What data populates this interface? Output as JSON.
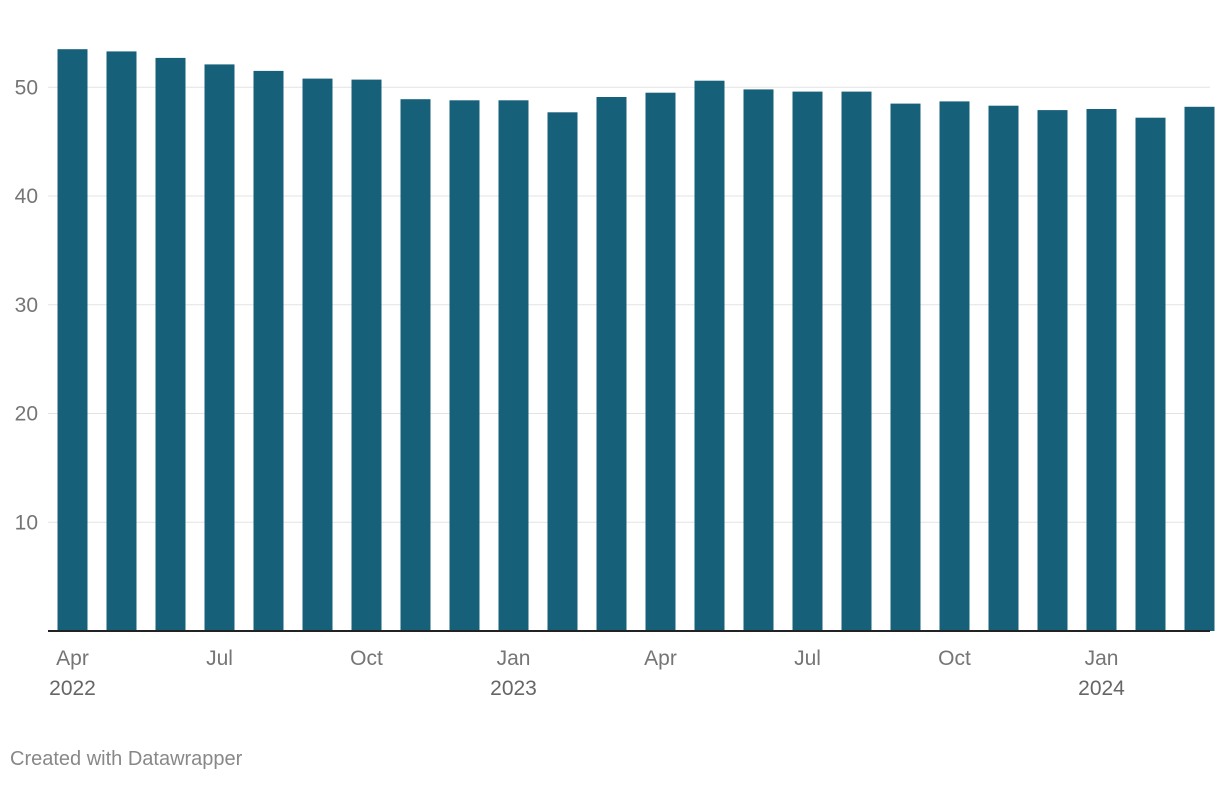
{
  "chart_data": {
    "type": "bar",
    "categories": [
      "2022-04",
      "2022-05",
      "2022-06",
      "2022-07",
      "2022-08",
      "2022-09",
      "2022-10",
      "2022-11",
      "2022-12",
      "2023-01",
      "2023-02",
      "2023-03",
      "2023-04",
      "2023-05",
      "2023-06",
      "2023-07",
      "2023-08",
      "2023-09",
      "2023-10",
      "2023-11",
      "2023-12",
      "2024-01",
      "2024-02",
      "2024-03"
    ],
    "values": [
      53.5,
      53.3,
      52.7,
      52.1,
      51.5,
      50.8,
      50.7,
      48.9,
      48.8,
      48.8,
      47.7,
      49.1,
      49.5,
      50.6,
      49.8,
      49.6,
      49.6,
      48.5,
      48.7,
      48.3,
      47.9,
      48.0,
      47.2,
      48.2
    ],
    "ylim": [
      0,
      55
    ],
    "y_ticks": [
      10,
      20,
      30,
      40,
      50
    ],
    "x_tick_labels": [
      {
        "category": "2022-04",
        "month": "Apr",
        "year": "2022"
      },
      {
        "category": "2022-07",
        "month": "Jul",
        "year": ""
      },
      {
        "category": "2022-10",
        "month": "Oct",
        "year": ""
      },
      {
        "category": "2023-01",
        "month": "Jan",
        "year": "2023"
      },
      {
        "category": "2023-04",
        "month": "Apr",
        "year": ""
      },
      {
        "category": "2023-07",
        "month": "Jul",
        "year": ""
      },
      {
        "category": "2023-10",
        "month": "Oct",
        "year": ""
      },
      {
        "category": "2024-01",
        "month": "Jan",
        "year": "2024"
      }
    ],
    "grid": true,
    "colors": {
      "bar": "#17607a",
      "grid": "#e3e3e3",
      "axis": "#222222"
    },
    "title": "",
    "xlabel": "",
    "ylabel": ""
  },
  "footer": {
    "credit": "Created with Datawrapper"
  }
}
